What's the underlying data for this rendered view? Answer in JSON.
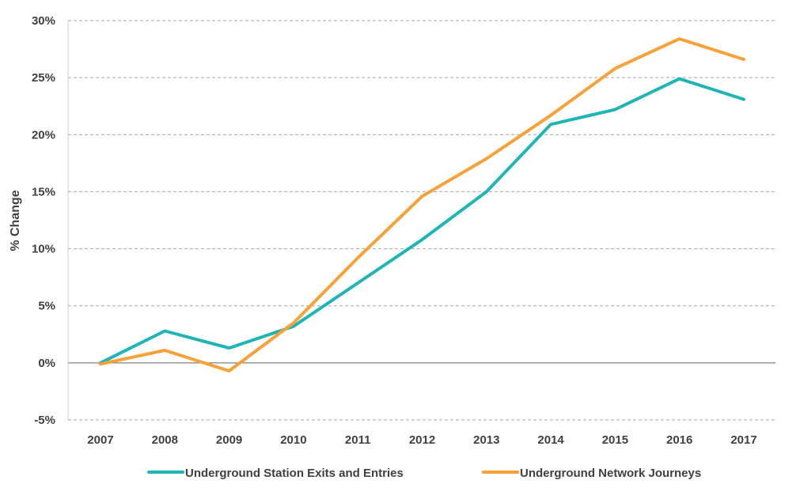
{
  "chart_data": {
    "type": "line",
    "ylabel": "% Change",
    "xlabel": "",
    "ylim": [
      -5,
      30
    ],
    "y_ticks": [
      "-5%",
      "0%",
      "5%",
      "10%",
      "15%",
      "20%",
      "25%",
      "30%"
    ],
    "y_tick_values": [
      -5,
      0,
      5,
      10,
      15,
      20,
      25,
      30
    ],
    "categories": [
      "2007",
      "2008",
      "2009",
      "2010",
      "2011",
      "2012",
      "2013",
      "2014",
      "2015",
      "2016",
      "2017"
    ],
    "grid": "horizontal dashed",
    "legend_position": "bottom",
    "series": [
      {
        "name": "Underground Station Exits and Entries",
        "color": "#1FB5B5",
        "values": [
          0.0,
          2.8,
          1.3,
          3.2,
          7.0,
          10.8,
          15.0,
          20.9,
          22.2,
          24.9,
          23.1
        ]
      },
      {
        "name": "Underground Network Journeys",
        "color": "#F7A138",
        "values": [
          -0.1,
          1.1,
          -0.7,
          3.5,
          9.2,
          14.6,
          17.9,
          21.7,
          25.8,
          28.4,
          26.6
        ]
      }
    ]
  }
}
